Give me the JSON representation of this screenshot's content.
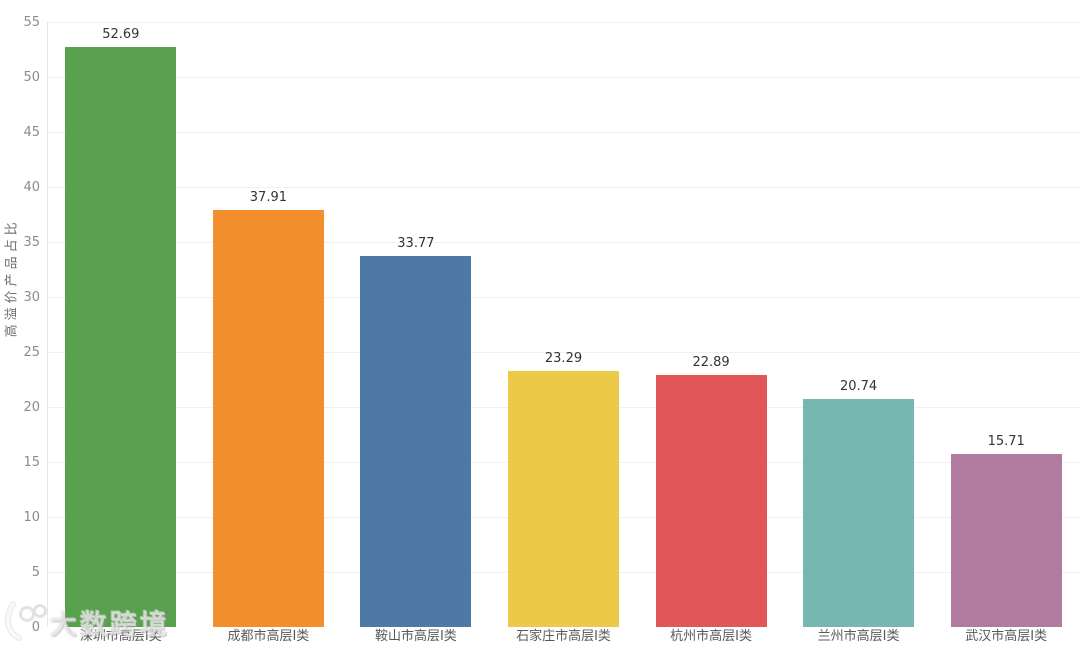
{
  "chart_data": {
    "type": "bar",
    "title": "",
    "xlabel": "",
    "ylabel": "高溢价产品占比",
    "categories": [
      "深圳市高层Ⅰ类",
      "成都市高层Ⅰ类",
      "鞍山市高层Ⅰ类",
      "石家庄市高层Ⅰ类",
      "杭州市高层Ⅰ类",
      "兰州市高层Ⅰ类",
      "武汉市高层Ⅰ类"
    ],
    "values": [
      52.69,
      37.91,
      33.77,
      23.29,
      22.89,
      20.74,
      15.71
    ],
    "value_labels": [
      "52.69",
      "37.91",
      "33.77",
      "23.29",
      "22.89",
      "20.74",
      "15.71"
    ],
    "bar_colors": [
      "#59a14f",
      "#f28e2b",
      "#4e79a7",
      "#edc948",
      "#e15759",
      "#76b7b2",
      "#b07aa1"
    ],
    "ylim": [
      0,
      55
    ],
    "ytick_step": 5,
    "ytick_labels": [
      "0",
      "5",
      "10",
      "15",
      "20",
      "25",
      "30",
      "35",
      "40",
      "45",
      "50",
      "55"
    ],
    "grid": true,
    "legend_position": "none"
  },
  "watermark": {
    "text": "大数跨境",
    "icon": "swoosh-100-logo"
  },
  "colors": {
    "background": "#ffffff",
    "gridline": "#f0f0f0",
    "axis_line": "#e6e6e6",
    "tick_label": "#8c8c8c",
    "category_label": "#595959",
    "value_label": "#333333"
  }
}
